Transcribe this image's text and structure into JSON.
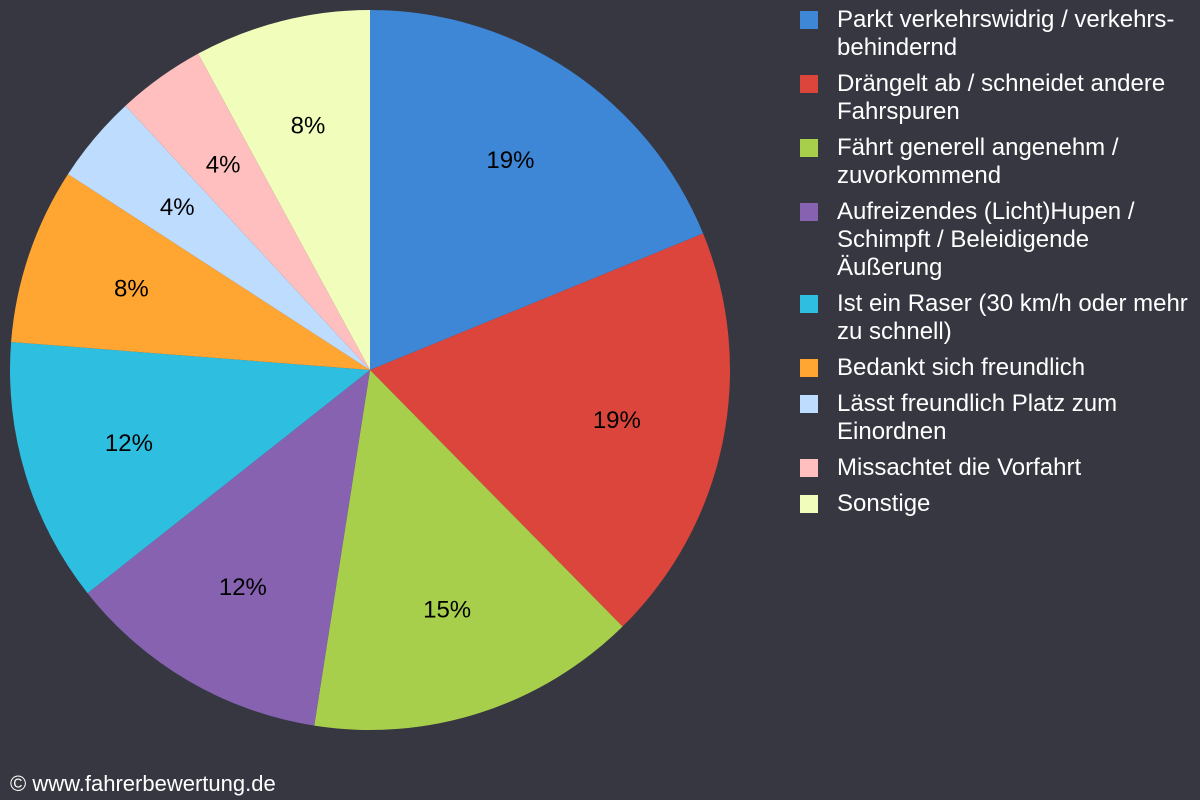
{
  "chart_data": {
    "type": "pie",
    "start": "top",
    "direction": "clockwise",
    "legend_placement": "right",
    "slices": [
      {
        "label": "Parkt verkehrswidrig / verkehrs-behindernd",
        "value": 19,
        "value_label": "19%",
        "color": "#3d87d6"
      },
      {
        "label": "Drängelt ab / schneidet andere Fahrspuren",
        "value": 19,
        "value_label": "19%",
        "color": "#db453b"
      },
      {
        "label": "Fährt generell angenehm / zuvorkommend",
        "value": 15,
        "value_label": "15%",
        "color": "#a8cf4c"
      },
      {
        "label": "Aufreizendes (Licht)Hupen / Schimpft / Beleidigende Äußerung",
        "value": 12,
        "value_label": "12%",
        "color": "#8662b1"
      },
      {
        "label": "Ist ein Raser (30 km/h oder mehr zu schnell)",
        "value": 12,
        "value_label": "12%",
        "color": "#2ebee0"
      },
      {
        "label": "Bedankt sich freundlich",
        "value": 8,
        "value_label": "8%",
        "color": "#ffa531"
      },
      {
        "label": "Lässt freundlich Platz zum Einordnen",
        "value": 4,
        "value_label": "4%",
        "color": "#bddcfe"
      },
      {
        "label": "Missachtet die Vorfahrt",
        "value": 4,
        "value_label": "4%",
        "color": "#ffbfbe"
      },
      {
        "label": "Sonstige",
        "value": 8,
        "value_label": "8%",
        "color": "#f1febb"
      }
    ]
  },
  "footer": {
    "copyright": "© www.fahrerbewertung.de"
  },
  "colors": {
    "background": "#363741",
    "text": "#ffffff",
    "slice_label": "#000000"
  }
}
